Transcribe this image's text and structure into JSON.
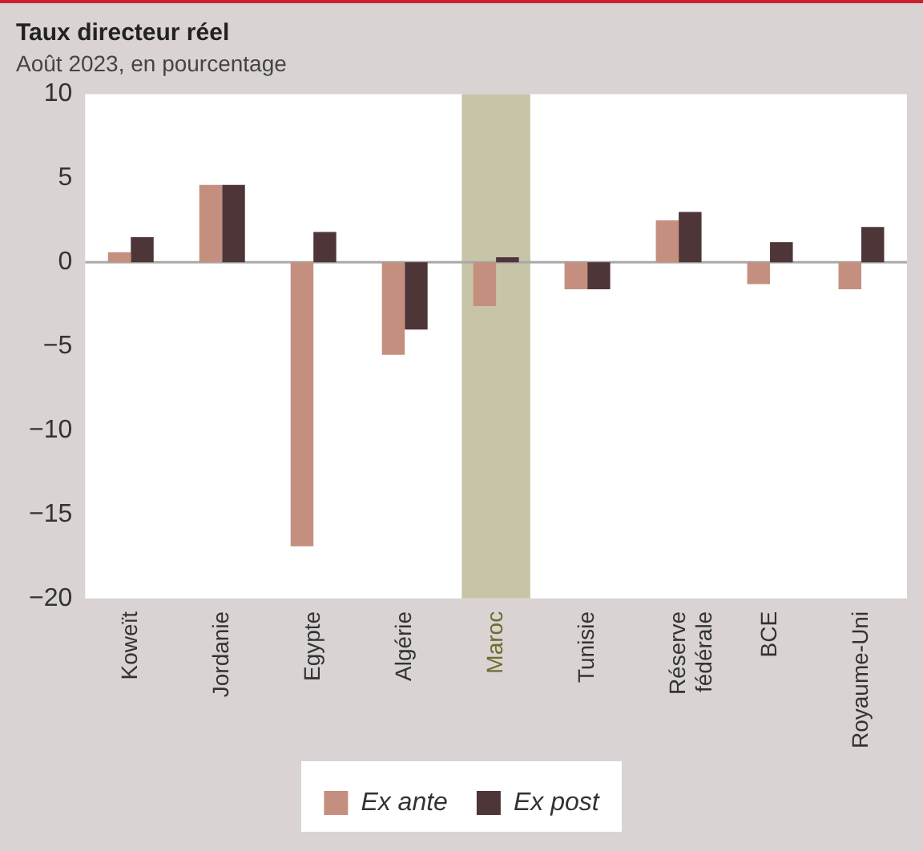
{
  "chart_data": {
    "type": "bar",
    "title": "Taux directeur réel",
    "subtitle": "Août 2023, en pourcentage",
    "categories": [
      "Koweït",
      "Jordanie",
      "Egypte",
      "Algérie",
      "Maroc",
      "Tunisie",
      "Réserve fédérale",
      "BCE",
      "Royaume-Uni"
    ],
    "series": [
      {
        "name": "Ex ante",
        "color": "#c48f7f",
        "values": [
          0.6,
          4.6,
          -16.9,
          -5.5,
          -2.6,
          -1.6,
          2.5,
          -1.3,
          -1.6
        ]
      },
      {
        "name": "Ex post",
        "color": "#4e3538",
        "values": [
          1.5,
          4.6,
          1.8,
          -4.0,
          0.3,
          -1.6,
          3.0,
          1.2,
          2.1
        ]
      }
    ],
    "ylim": [
      -20,
      10
    ],
    "yticks": [
      -20,
      -15,
      -10,
      -5,
      0,
      5,
      10
    ],
    "legend": "bottom",
    "ref_lines": [
      {
        "axis": "y",
        "value": 0,
        "color": "#a9a9a9"
      }
    ],
    "bands": [
      {
        "axis": "x",
        "from": "Maroc",
        "to": "Maroc",
        "color": "#c8c4a8"
      }
    ]
  }
}
